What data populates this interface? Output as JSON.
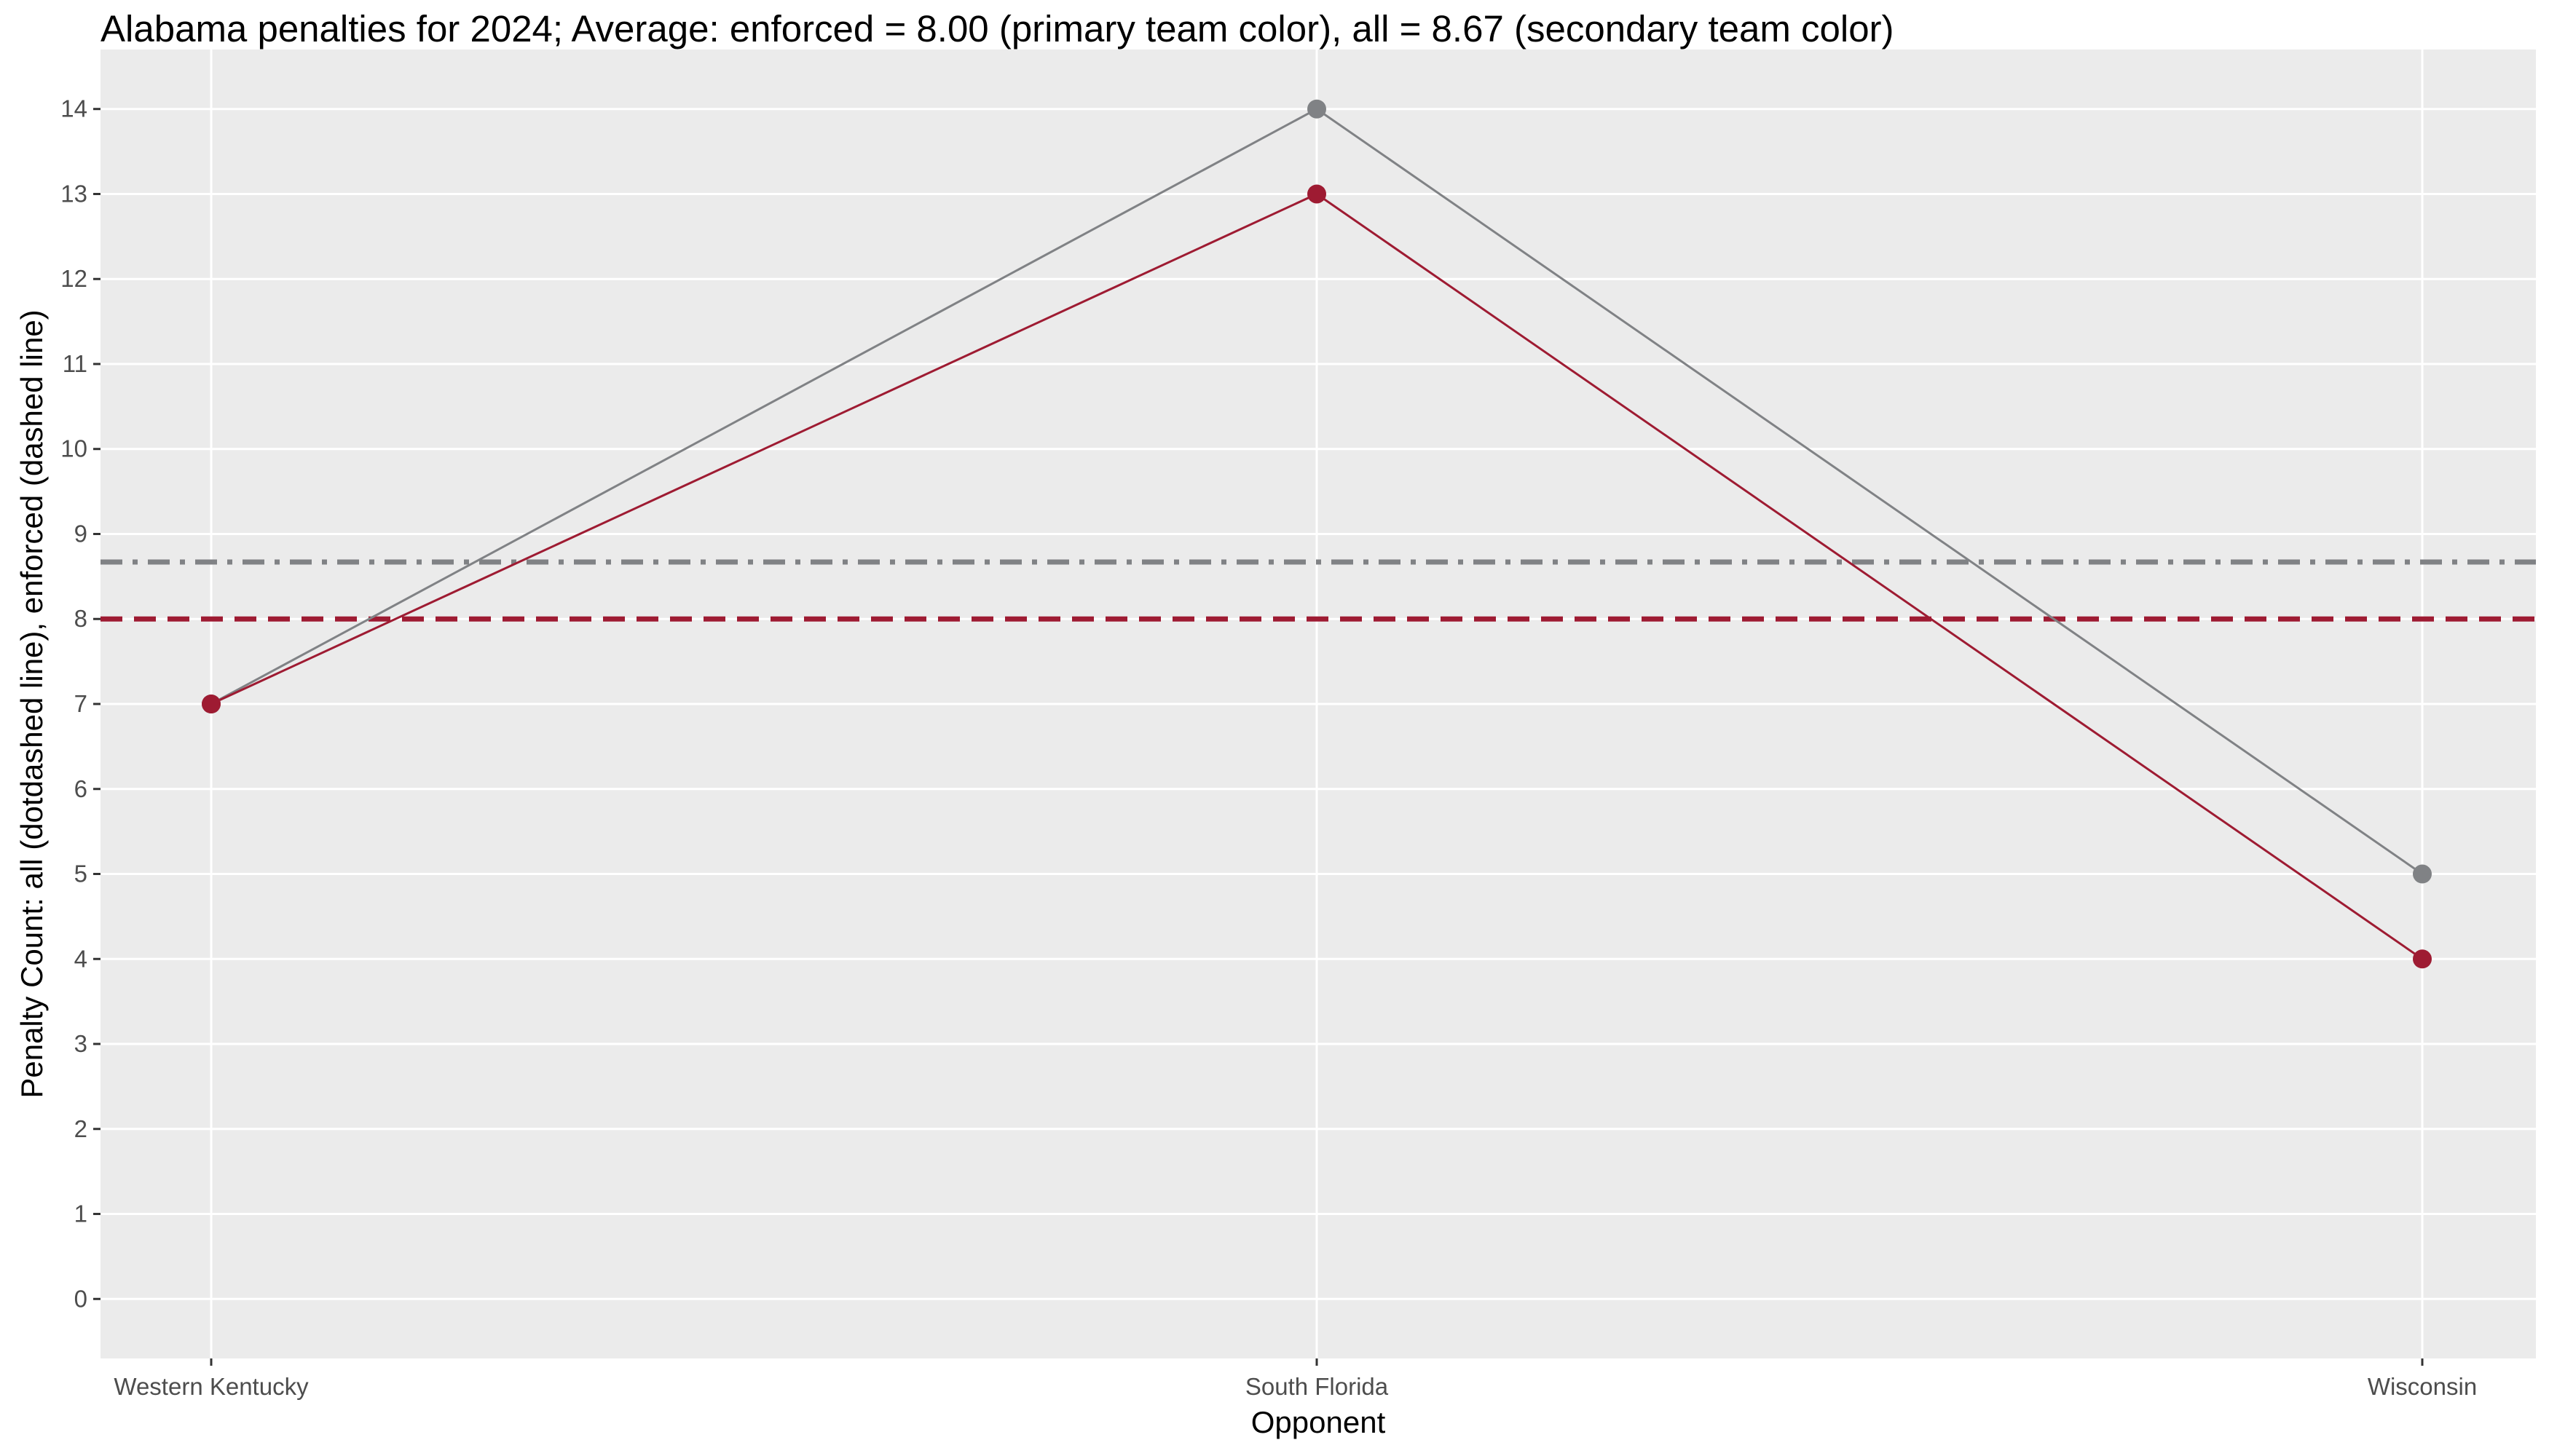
{
  "chart_data": {
    "type": "line",
    "title": "Alabama penalties for 2024; Average: enforced = 8.00 (primary team color), all = 8.67 (secondary team color)",
    "xlabel": "Opponent",
    "ylabel": "Penalty Count: all (dotdashed line), enforced (dashed line)",
    "categories": [
      "Western Kentucky",
      "South Florida",
      "Wisconsin"
    ],
    "y_ticks": [
      "0",
      "1",
      "2",
      "3",
      "4",
      "5",
      "6",
      "7",
      "8",
      "9",
      "10",
      "11",
      "12",
      "13",
      "14"
    ],
    "ylim": [
      -0.7,
      14.7
    ],
    "grid": true,
    "series": [
      {
        "values": [
          7,
          14,
          5
        ],
        "color": "#808285"
      },
      {
        "values": [
          7,
          13,
          4
        ],
        "color": "#9e1b32"
      }
    ],
    "reference_lines": [
      {
        "value": 8.67,
        "style": "dotdash",
        "color": "#808285"
      },
      {
        "value": 8.0,
        "style": "dashed",
        "color": "#9e1b32"
      }
    ],
    "colors": {
      "panel_background": "#ebebeb",
      "grid": "#ffffff"
    }
  }
}
